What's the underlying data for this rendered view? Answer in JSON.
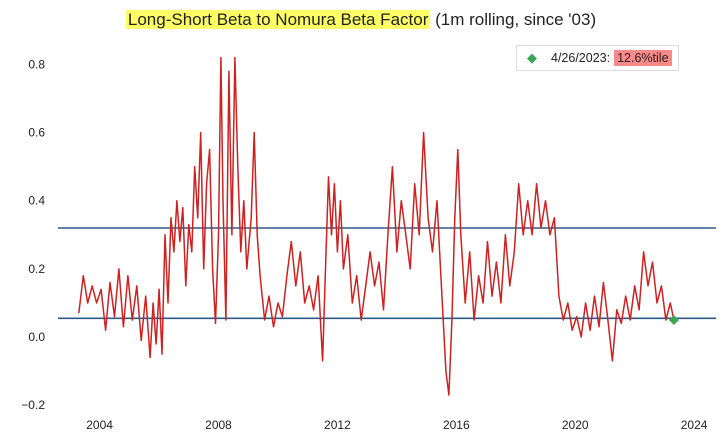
{
  "chart_data": {
    "type": "line",
    "title_highlight": "Long-Short Beta to Nomura Beta Factor",
    "title_rest": " (1m rolling, since '03)",
    "xlabel": "",
    "ylabel": "",
    "x_ticks": [
      "2004",
      "2008",
      "2012",
      "2016",
      "2020",
      "2024"
    ],
    "y_ticks": [
      "0.8",
      "0.6",
      "0.4",
      "0.2",
      "0.0",
      "−0.2"
    ],
    "xlim": [
      2002.6,
      2024.4
    ],
    "ylim": [
      -0.22,
      0.86
    ],
    "grid": false,
    "legend_position": "top-right",
    "series": [
      {
        "color": "#cc2222",
        "points": [
          [
            2003.3,
            0.07
          ],
          [
            2003.45,
            0.18
          ],
          [
            2003.6,
            0.1
          ],
          [
            2003.75,
            0.15
          ],
          [
            2003.9,
            0.1
          ],
          [
            2004.05,
            0.14
          ],
          [
            2004.2,
            0.02
          ],
          [
            2004.35,
            0.16
          ],
          [
            2004.5,
            0.06
          ],
          [
            2004.65,
            0.2
          ],
          [
            2004.8,
            0.03
          ],
          [
            2004.95,
            0.18
          ],
          [
            2005.1,
            0.05
          ],
          [
            2005.25,
            0.15
          ],
          [
            2005.4,
            -0.01
          ],
          [
            2005.55,
            0.12
          ],
          [
            2005.7,
            -0.06
          ],
          [
            2005.8,
            0.1
          ],
          [
            2005.9,
            -0.02
          ],
          [
            2006.0,
            0.14
          ],
          [
            2006.1,
            -0.05
          ],
          [
            2006.2,
            0.3
          ],
          [
            2006.3,
            0.1
          ],
          [
            2006.4,
            0.35
          ],
          [
            2006.5,
            0.25
          ],
          [
            2006.6,
            0.4
          ],
          [
            2006.7,
            0.28
          ],
          [
            2006.8,
            0.38
          ],
          [
            2006.9,
            0.15
          ],
          [
            2007.0,
            0.33
          ],
          [
            2007.1,
            0.25
          ],
          [
            2007.2,
            0.5
          ],
          [
            2007.3,
            0.35
          ],
          [
            2007.4,
            0.6
          ],
          [
            2007.5,
            0.2
          ],
          [
            2007.6,
            0.45
          ],
          [
            2007.7,
            0.55
          ],
          [
            2007.8,
            0.2
          ],
          [
            2007.9,
            0.04
          ],
          [
            2008.0,
            0.3
          ],
          [
            2008.08,
            0.82
          ],
          [
            2008.15,
            0.4
          ],
          [
            2008.25,
            0.05
          ],
          [
            2008.35,
            0.78
          ],
          [
            2008.45,
            0.3
          ],
          [
            2008.55,
            0.82
          ],
          [
            2008.65,
            0.5
          ],
          [
            2008.75,
            0.25
          ],
          [
            2008.85,
            0.4
          ],
          [
            2008.95,
            0.2
          ],
          [
            2009.1,
            0.35
          ],
          [
            2009.2,
            0.6
          ],
          [
            2009.3,
            0.3
          ],
          [
            2009.4,
            0.18
          ],
          [
            2009.55,
            0.05
          ],
          [
            2009.7,
            0.12
          ],
          [
            2009.85,
            0.03
          ],
          [
            2010.0,
            0.1
          ],
          [
            2010.15,
            0.06
          ],
          [
            2010.3,
            0.18
          ],
          [
            2010.45,
            0.28
          ],
          [
            2010.6,
            0.15
          ],
          [
            2010.75,
            0.25
          ],
          [
            2010.9,
            0.1
          ],
          [
            2011.05,
            0.15
          ],
          [
            2011.2,
            0.08
          ],
          [
            2011.35,
            0.18
          ],
          [
            2011.5,
            -0.07
          ],
          [
            2011.6,
            0.2
          ],
          [
            2011.7,
            0.47
          ],
          [
            2011.8,
            0.3
          ],
          [
            2011.9,
            0.45
          ],
          [
            2012.0,
            0.25
          ],
          [
            2012.1,
            0.4
          ],
          [
            2012.2,
            0.2
          ],
          [
            2012.35,
            0.3
          ],
          [
            2012.5,
            0.1
          ],
          [
            2012.65,
            0.18
          ],
          [
            2012.8,
            0.05
          ],
          [
            2012.95,
            0.15
          ],
          [
            2013.1,
            0.25
          ],
          [
            2013.25,
            0.15
          ],
          [
            2013.4,
            0.22
          ],
          [
            2013.55,
            0.08
          ],
          [
            2013.7,
            0.3
          ],
          [
            2013.85,
            0.5
          ],
          [
            2014.0,
            0.25
          ],
          [
            2014.15,
            0.4
          ],
          [
            2014.3,
            0.3
          ],
          [
            2014.45,
            0.2
          ],
          [
            2014.6,
            0.45
          ],
          [
            2014.75,
            0.3
          ],
          [
            2014.9,
            0.6
          ],
          [
            2015.05,
            0.35
          ],
          [
            2015.2,
            0.25
          ],
          [
            2015.35,
            0.4
          ],
          [
            2015.5,
            0.15
          ],
          [
            2015.65,
            -0.1
          ],
          [
            2015.75,
            -0.17
          ],
          [
            2015.85,
            0.05
          ],
          [
            2015.95,
            0.35
          ],
          [
            2016.05,
            0.55
          ],
          [
            2016.15,
            0.3
          ],
          [
            2016.3,
            0.1
          ],
          [
            2016.45,
            0.25
          ],
          [
            2016.6,
            0.05
          ],
          [
            2016.75,
            0.18
          ],
          [
            2016.9,
            0.1
          ],
          [
            2017.05,
            0.28
          ],
          [
            2017.2,
            0.12
          ],
          [
            2017.35,
            0.22
          ],
          [
            2017.5,
            0.1
          ],
          [
            2017.65,
            0.3
          ],
          [
            2017.8,
            0.15
          ],
          [
            2017.95,
            0.25
          ],
          [
            2018.1,
            0.45
          ],
          [
            2018.25,
            0.3
          ],
          [
            2018.4,
            0.4
          ],
          [
            2018.55,
            0.3
          ],
          [
            2018.7,
            0.45
          ],
          [
            2018.85,
            0.32
          ],
          [
            2019.0,
            0.4
          ],
          [
            2019.15,
            0.3
          ],
          [
            2019.3,
            0.35
          ],
          [
            2019.45,
            0.12
          ],
          [
            2019.6,
            0.05
          ],
          [
            2019.75,
            0.1
          ],
          [
            2019.9,
            0.02
          ],
          [
            2020.05,
            0.06
          ],
          [
            2020.2,
            0.0
          ],
          [
            2020.35,
            0.1
          ],
          [
            2020.5,
            0.02
          ],
          [
            2020.65,
            0.12
          ],
          [
            2020.8,
            0.03
          ],
          [
            2020.95,
            0.16
          ],
          [
            2021.1,
            0.05
          ],
          [
            2021.25,
            -0.07
          ],
          [
            2021.4,
            0.08
          ],
          [
            2021.55,
            0.04
          ],
          [
            2021.7,
            0.12
          ],
          [
            2021.85,
            0.05
          ],
          [
            2022.0,
            0.15
          ],
          [
            2022.15,
            0.08
          ],
          [
            2022.3,
            0.25
          ],
          [
            2022.45,
            0.15
          ],
          [
            2022.6,
            0.22
          ],
          [
            2022.75,
            0.1
          ],
          [
            2022.9,
            0.15
          ],
          [
            2023.05,
            0.05
          ],
          [
            2023.2,
            0.1
          ],
          [
            2023.32,
            0.05
          ]
        ]
      }
    ],
    "hlines": [
      {
        "y": 0.32,
        "color": "#2c5b8a"
      },
      {
        "y": 0.055,
        "color": "#2c5b8a"
      }
    ],
    "annotation": {
      "date": "4/26/2023:",
      "percentile": "12.6%tile",
      "x": 2023.32,
      "y": 0.05,
      "marker_color": "#3aa655"
    }
  }
}
